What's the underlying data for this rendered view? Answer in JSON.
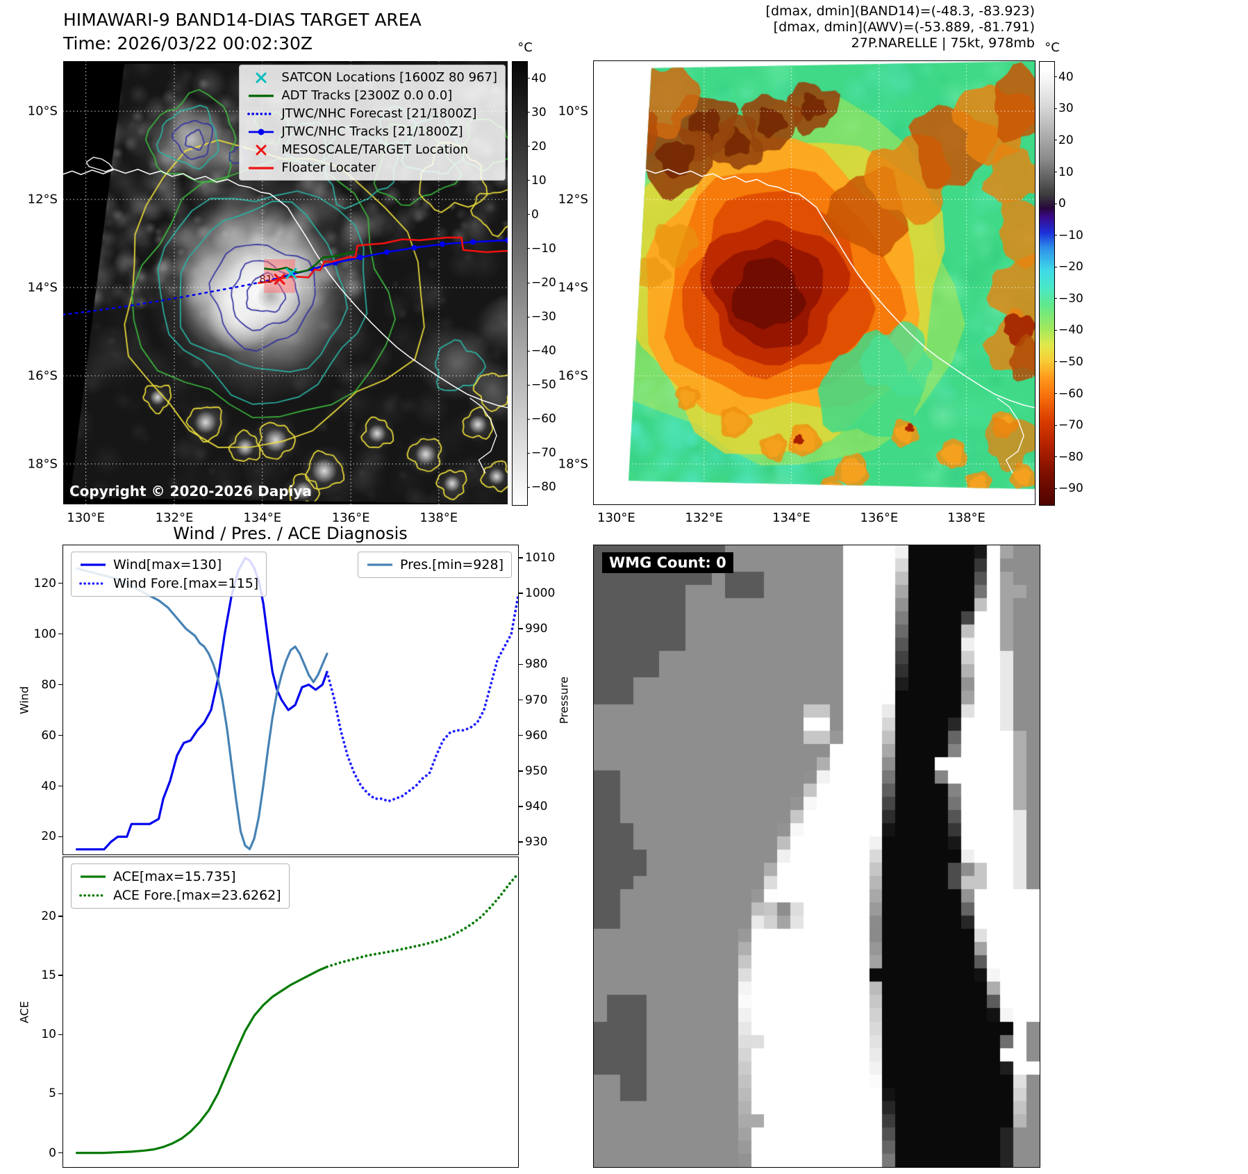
{
  "panel1": {
    "title": "HIMAWARI-9 BAND14-DIAS TARGET AREA",
    "subtitle": "Time: 2026/03/22 00:02:30Z",
    "copyright": "Copyright © 2020-2026 Dapiya",
    "center_label": "81",
    "legend": [
      {
        "label": "SATCON Locations [1600Z 80 967]",
        "marker": "x",
        "color": "#00bcbc"
      },
      {
        "label": "ADT Tracks [2300Z 0.0 0.0]",
        "marker": "line",
        "color": "#006400"
      },
      {
        "label": "JTWC/NHC Forecast [21/1800Z]",
        "marker": "dotted",
        "color": "#0000ee"
      },
      {
        "label": "JTWC/NHC Tracks [21/1800Z]",
        "marker": "line-dot",
        "color": "#0000ee"
      },
      {
        "label": "MESOSCALE/TARGET Location",
        "marker": "x",
        "color": "#ee1111"
      },
      {
        "label": "Floater Locater",
        "marker": "line",
        "color": "#ee1111"
      }
    ],
    "lat_ticks": [
      "10°S",
      "12°S",
      "14°S",
      "16°S",
      "18°S"
    ],
    "lon_ticks": [
      "130°E",
      "132°E",
      "134°E",
      "136°E",
      "138°E"
    ],
    "colorbar": {
      "unit": "°C",
      "tick_vals": [
        40,
        30,
        20,
        10,
        0,
        -10,
        -20,
        -30,
        -40,
        -50,
        -60,
        -70,
        -80
      ],
      "tick_labels": [
        "40",
        "30",
        "20",
        "10",
        "0",
        "−10",
        "−20",
        "−30",
        "−40",
        "−50",
        "−60",
        "−70",
        "−80"
      ]
    }
  },
  "panel2": {
    "header_lines": [
      "[dmax, dmin](BAND14)=(-48.3, -83.923)",
      "[dmax, dmin](AWV)=(-53.889, -81.791)",
      "27P.NARELLE | 75kt, 978mb"
    ],
    "lat_ticks": [
      "10°S",
      "12°S",
      "14°S",
      "16°S",
      "18°S"
    ],
    "lon_ticks": [
      "130°E",
      "132°E",
      "134°E",
      "136°E",
      "138°E"
    ],
    "colorbar": {
      "unit": "°C",
      "tick_vals": [
        40,
        30,
        20,
        10,
        0,
        -10,
        -20,
        -30,
        -40,
        -50,
        -60,
        -70,
        -80,
        -90
      ],
      "tick_labels": [
        "40",
        "30",
        "20",
        "10",
        "0",
        "−10",
        "−20",
        "−30",
        "−40",
        "−50",
        "−60",
        "−70",
        "−80",
        "−90"
      ]
    }
  },
  "panel3": {
    "title": "Wind / Pres. / ACE Diagnosis"
  },
  "panel4": {
    "badge": "WMG Count: 0"
  },
  "chart_data": [
    {
      "type": "line",
      "title": "Wind / Pres. / ACE Diagnosis",
      "x_range": [
        0,
        100
      ],
      "left_axis": {
        "label": "Wind",
        "ticks": [
          20,
          40,
          60,
          80,
          100,
          120
        ],
        "range": [
          13,
          135
        ]
      },
      "right_axis": {
        "label": "Pressure",
        "ticks": [
          930,
          940,
          950,
          960,
          970,
          980,
          990,
          1000,
          1010
        ],
        "range": [
          926.5,
          1013.5
        ]
      },
      "grid": false,
      "series": [
        {
          "name": "Wind[max=130]",
          "axis": "left",
          "style": "solid",
          "color": "#0000ee",
          "x": [
            3,
            6,
            9,
            10.5,
            12,
            14,
            15,
            17,
            19,
            21,
            22,
            23.5,
            25,
            26.5,
            28,
            29.5,
            31,
            32.5,
            34,
            35.5,
            37,
            38.5,
            40,
            41,
            42,
            43,
            44,
            45,
            46,
            47,
            48,
            49.5,
            51,
            52.5,
            54,
            55.5,
            57,
            58
          ],
          "y": [
            15,
            15,
            15,
            18,
            20,
            20,
            25,
            25,
            25,
            27,
            35,
            42,
            52,
            57,
            58,
            62,
            65,
            70,
            82,
            100,
            115,
            125,
            130,
            129,
            126,
            121,
            112,
            98,
            85,
            78,
            74,
            70,
            72,
            79,
            80,
            78,
            80,
            85
          ]
        },
        {
          "name": "Wind Fore.[max=115]",
          "axis": "left",
          "style": "dotted",
          "color": "#1e1eff",
          "x": [
            58,
            59.5,
            61,
            62.5,
            64,
            65.5,
            67,
            68.5,
            70,
            71.5,
            73,
            74.5,
            76,
            77.5,
            79,
            80.5,
            82,
            83.5,
            85,
            86.5,
            88,
            89.5,
            91,
            92.5,
            94,
            95.5,
            97,
            98.5,
            100
          ],
          "y": [
            85,
            75,
            62,
            52,
            45,
            40,
            37,
            35,
            35,
            34,
            35,
            36,
            38,
            40,
            43,
            45,
            52,
            58,
            61,
            62,
            62,
            63,
            65,
            70,
            80,
            90,
            95,
            100,
            115
          ]
        },
        {
          "name": "Pres.[min=928]",
          "axis": "right",
          "style": "solid",
          "color": "#4682b4",
          "x": [
            3,
            6,
            9,
            12,
            15,
            18,
            21,
            23,
            25,
            27,
            29,
            30,
            31,
            32,
            33,
            34,
            35,
            36,
            37,
            38,
            39,
            40,
            41,
            42,
            43,
            44,
            45,
            46,
            47,
            48,
            49,
            50,
            51,
            52,
            53,
            54,
            55,
            56,
            57,
            58
          ],
          "y": [
            1007,
            1006,
            1005,
            1004,
            1002,
            1000,
            998,
            996,
            993,
            990,
            988,
            986,
            985,
            983,
            980,
            976,
            970,
            962,
            952,
            942,
            933,
            929,
            928,
            931,
            937,
            946,
            956,
            965,
            972,
            977,
            981,
            984,
            985,
            983,
            980,
            977,
            975,
            977,
            980,
            983
          ]
        }
      ]
    },
    {
      "type": "line",
      "x_range": [
        0,
        100
      ],
      "left_axis": {
        "label": "ACE",
        "ticks": [
          0,
          5,
          10,
          15,
          20
        ],
        "range": [
          -1.2,
          25
        ]
      },
      "grid": false,
      "series": [
        {
          "name": "ACE[max=15.735]",
          "axis": "left",
          "style": "solid",
          "color": "#027a02",
          "x": [
            3,
            6,
            9,
            12,
            15,
            18,
            20,
            22,
            24,
            26,
            28,
            30,
            32,
            34,
            36,
            38,
            40,
            42,
            44,
            46,
            48,
            50,
            52,
            54,
            56,
            58
          ],
          "y": [
            0,
            0,
            0,
            0.05,
            0.1,
            0.2,
            0.3,
            0.5,
            0.8,
            1.2,
            1.8,
            2.6,
            3.6,
            5.0,
            6.8,
            8.6,
            10.3,
            11.6,
            12.5,
            13.2,
            13.7,
            14.2,
            14.6,
            15.0,
            15.4,
            15.735
          ]
        },
        {
          "name": "ACE Fore.[max=23.6262]",
          "axis": "left",
          "style": "dotted",
          "color": "#027a02",
          "x": [
            58,
            61,
            64,
            67,
            70,
            73,
            76,
            79,
            82,
            85,
            88,
            90,
            92,
            94,
            96,
            98,
            100
          ],
          "y": [
            15.735,
            16.1,
            16.4,
            16.7,
            16.9,
            17.1,
            17.35,
            17.6,
            17.9,
            18.3,
            18.9,
            19.4,
            20.0,
            20.8,
            21.7,
            22.7,
            23.6262
          ]
        }
      ]
    }
  ]
}
